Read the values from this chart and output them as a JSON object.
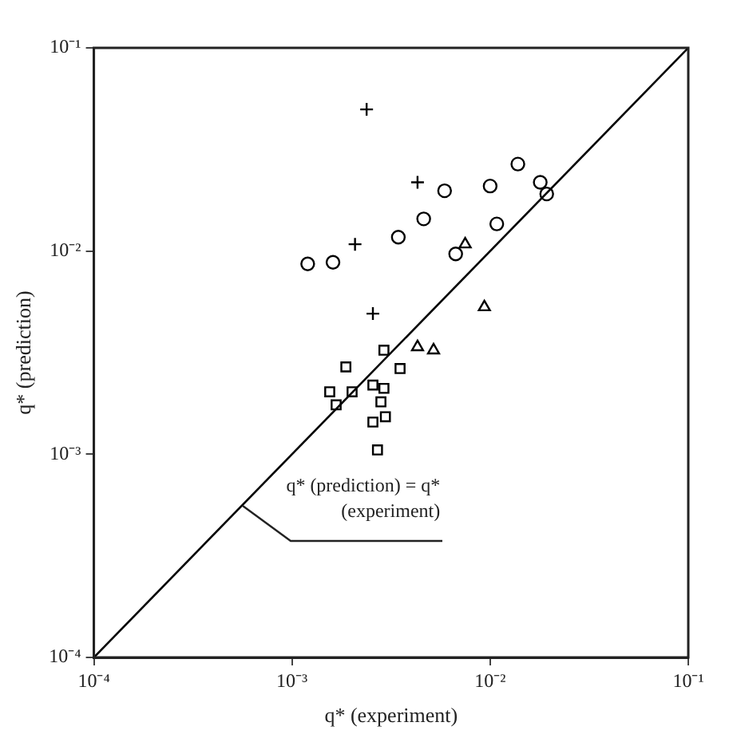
{
  "chart_data": {
    "type": "scatter",
    "xlabel": "q* (experiment)",
    "ylabel": "q* (prediction)",
    "log": "xy",
    "grid": false,
    "legend": false,
    "xlim": [
      0.0001,
      0.1
    ],
    "ylim": [
      0.0001,
      0.1
    ],
    "xticks": [
      {
        "value": 0.0001,
        "label": "10⁻⁴"
      },
      {
        "value": 0.001,
        "label": "10⁻³"
      },
      {
        "value": 0.01,
        "label": "10⁻²"
      },
      {
        "value": 0.1,
        "label": "10⁻¹"
      }
    ],
    "yticks": [
      {
        "value": 0.0001,
        "label": "10⁻⁴"
      },
      {
        "value": 0.001,
        "label": "10⁻³"
      },
      {
        "value": 0.01,
        "label": "10⁻²"
      },
      {
        "value": 0.1,
        "label": "10⁻¹"
      }
    ],
    "annotations": [
      {
        "text": "q* (prediction) = q* (experiment)",
        "x": 0.00056,
        "y": 0.00056
      }
    ],
    "series": [
      {
        "type": "line",
        "color": "#000000",
        "marker": "none",
        "line_style": "solid",
        "x": [
          0.0001,
          0.1
        ],
        "values": [
          0.0001,
          0.1
        ]
      },
      {
        "color": "#000000",
        "marker": "cross",
        "x": [
          0.00238,
          0.0043,
          0.00208,
          0.00256
        ],
        "values": [
          0.0498,
          0.0218,
          0.0108,
          0.00492
        ]
      },
      {
        "color": "#000000",
        "marker": "circle",
        "x": [
          0.0012,
          0.00161,
          0.00344,
          0.00462,
          0.00589,
          0.0067
        ],
        "values": [
          0.00865,
          0.0088,
          0.0117,
          0.0144,
          0.0198,
          0.00968
        ]
      },
      {
        "color": "#000000",
        "marker": "circle",
        "x": [
          0.01,
          0.0138,
          0.0108,
          0.0179,
          0.0193
        ],
        "values": [
          0.0209,
          0.0268,
          0.0136,
          0.0218,
          0.0191
        ]
      },
      {
        "color": "#000000",
        "marker": "triangle",
        "x": [
          0.00935,
          0.0043,
          0.00518,
          0.00748
        ],
        "values": [
          0.0053,
          0.00337,
          0.00325,
          0.0108
        ]
      },
      {
        "color": "#000000",
        "marker": "square",
        "x": [
          0.00291,
          0.00187,
          0.00351,
          0.00155,
          0.00201,
          0.00167,
          0.00256,
          0.00291,
          0.00281,
          0.00296,
          0.00256,
          0.0027
        ],
        "values": [
          0.00325,
          0.00269,
          0.00264,
          0.00203,
          0.00203,
          0.00175,
          0.00219,
          0.00211,
          0.00181,
          0.00153,
          0.00144,
          0.00105
        ]
      }
    ]
  }
}
